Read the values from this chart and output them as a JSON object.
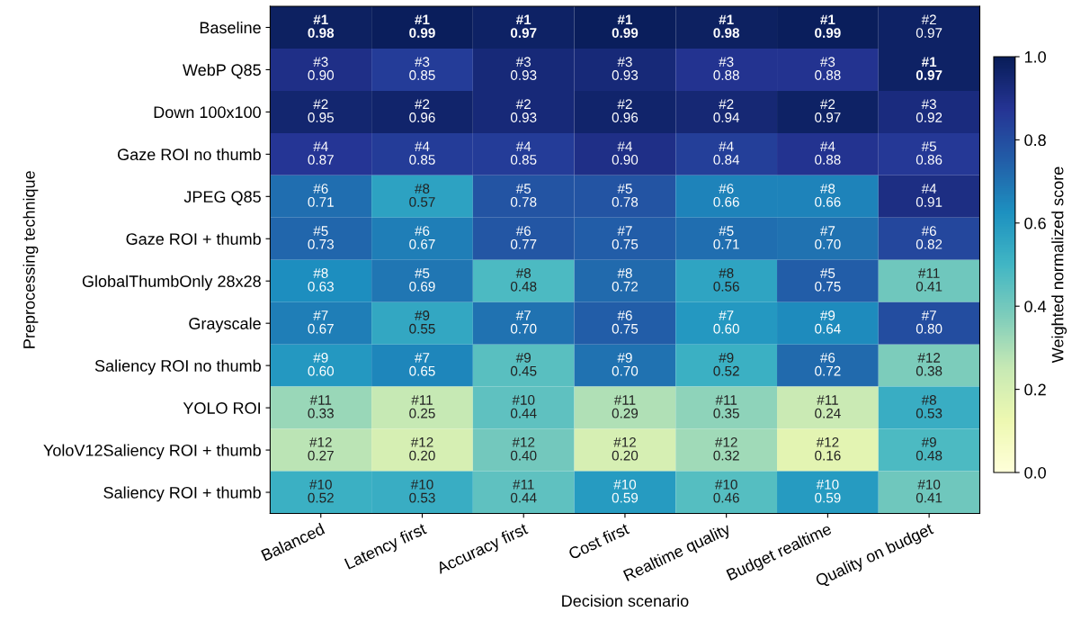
{
  "chart_data": {
    "type": "heatmap",
    "xlabel": "Decision scenario",
    "ylabel": "Preprocessing technique",
    "clabel": "Weighted normalized score",
    "categories": [
      "Balanced",
      "Latency first",
      "Accuracy first",
      "Cost first",
      "Realtime quality",
      "Budget realtime",
      "Quality on budget"
    ],
    "y_categories": [
      "Baseline",
      "WebP Q85",
      "Down 100x100",
      "Gaze ROI no thumb",
      "JPEG Q85",
      "Gaze ROI + thumb",
      "GlobalThumbOnly 28x28",
      "Grayscale",
      "Saliency ROI no thumb",
      "YOLO ROI",
      "YoloV12Saliency ROI + thumb",
      "Saliency ROI + thumb"
    ],
    "cells": [
      [
        0.98,
        0.99,
        0.97,
        0.99,
        0.98,
        0.99,
        0.97
      ],
      [
        0.9,
        0.85,
        0.93,
        0.93,
        0.88,
        0.88,
        0.97
      ],
      [
        0.95,
        0.96,
        0.93,
        0.96,
        0.94,
        0.97,
        0.92
      ],
      [
        0.87,
        0.85,
        0.85,
        0.9,
        0.84,
        0.88,
        0.86
      ],
      [
        0.71,
        0.57,
        0.78,
        0.78,
        0.66,
        0.66,
        0.91
      ],
      [
        0.73,
        0.67,
        0.77,
        0.75,
        0.71,
        0.7,
        0.82
      ],
      [
        0.63,
        0.69,
        0.48,
        0.72,
        0.56,
        0.75,
        0.41
      ],
      [
        0.67,
        0.55,
        0.7,
        0.75,
        0.6,
        0.64,
        0.8
      ],
      [
        0.6,
        0.65,
        0.45,
        0.7,
        0.52,
        0.72,
        0.38
      ],
      [
        0.33,
        0.25,
        0.44,
        0.29,
        0.35,
        0.24,
        0.53
      ],
      [
        0.27,
        0.2,
        0.4,
        0.2,
        0.32,
        0.16,
        0.48
      ],
      [
        0.52,
        0.53,
        0.44,
        0.59,
        0.46,
        0.59,
        0.41
      ]
    ],
    "cell_labels": [
      [
        "#1\n0.98",
        "#1\n0.99",
        "#1\n0.97",
        "#1\n0.99",
        "#1\n0.98",
        "#1\n0.99",
        "#2\n0.97"
      ],
      [
        "#3\n0.90",
        "#3\n0.85",
        "#3\n0.93",
        "#3\n0.93",
        "#3\n0.88",
        "#3\n0.88",
        "#1\n0.97"
      ],
      [
        "#2\n0.95",
        "#2\n0.96",
        "#2\n0.93",
        "#2\n0.96",
        "#2\n0.94",
        "#2\n0.97",
        "#3\n0.92"
      ],
      [
        "#4\n0.87",
        "#4\n0.85",
        "#4\n0.85",
        "#4\n0.90",
        "#4\n0.84",
        "#4\n0.88",
        "#5\n0.86"
      ],
      [
        "#6\n0.71",
        "#8\n0.57",
        "#5\n0.78",
        "#5\n0.78",
        "#6\n0.66",
        "#8\n0.66",
        "#4\n0.91"
      ],
      [
        "#5\n0.73",
        "#6\n0.67",
        "#6\n0.77",
        "#7\n0.75",
        "#5\n0.71",
        "#7\n0.70",
        "#6\n0.82"
      ],
      [
        "#8\n0.63",
        "#5\n0.69",
        "#8\n0.48",
        "#8\n0.72",
        "#8\n0.56",
        "#5\n0.75",
        "#11\n0.41"
      ],
      [
        "#7\n0.67",
        "#9\n0.55",
        "#7\n0.70",
        "#6\n0.75",
        "#7\n0.60",
        "#9\n0.64",
        "#7\n0.80"
      ],
      [
        "#9\n0.60",
        "#7\n0.65",
        "#9\n0.45",
        "#9\n0.70",
        "#9\n0.52",
        "#6\n0.72",
        "#12\n0.38"
      ],
      [
        "#11\n0.33",
        "#11\n0.25",
        "#10\n0.44",
        "#11\n0.29",
        "#11\n0.35",
        "#11\n0.24",
        "#8\n0.53"
      ],
      [
        "#12\n0.27",
        "#12\n0.20",
        "#12\n0.40",
        "#12\n0.20",
        "#12\n0.32",
        "#12\n0.16",
        "#9\n0.48"
      ],
      [
        "#10\n0.52",
        "#10\n0.53",
        "#11\n0.44",
        "#10\n0.59",
        "#10\n0.46",
        "#10\n0.59",
        "#10\n0.41"
      ]
    ],
    "clim": [
      0,
      1
    ],
    "cticks": [
      {
        "value": 0,
        "label": "0.0"
      },
      0.2,
      0.4,
      0.6,
      0.8,
      {
        "value": 1,
        "label": "1.0"
      }
    ]
  }
}
